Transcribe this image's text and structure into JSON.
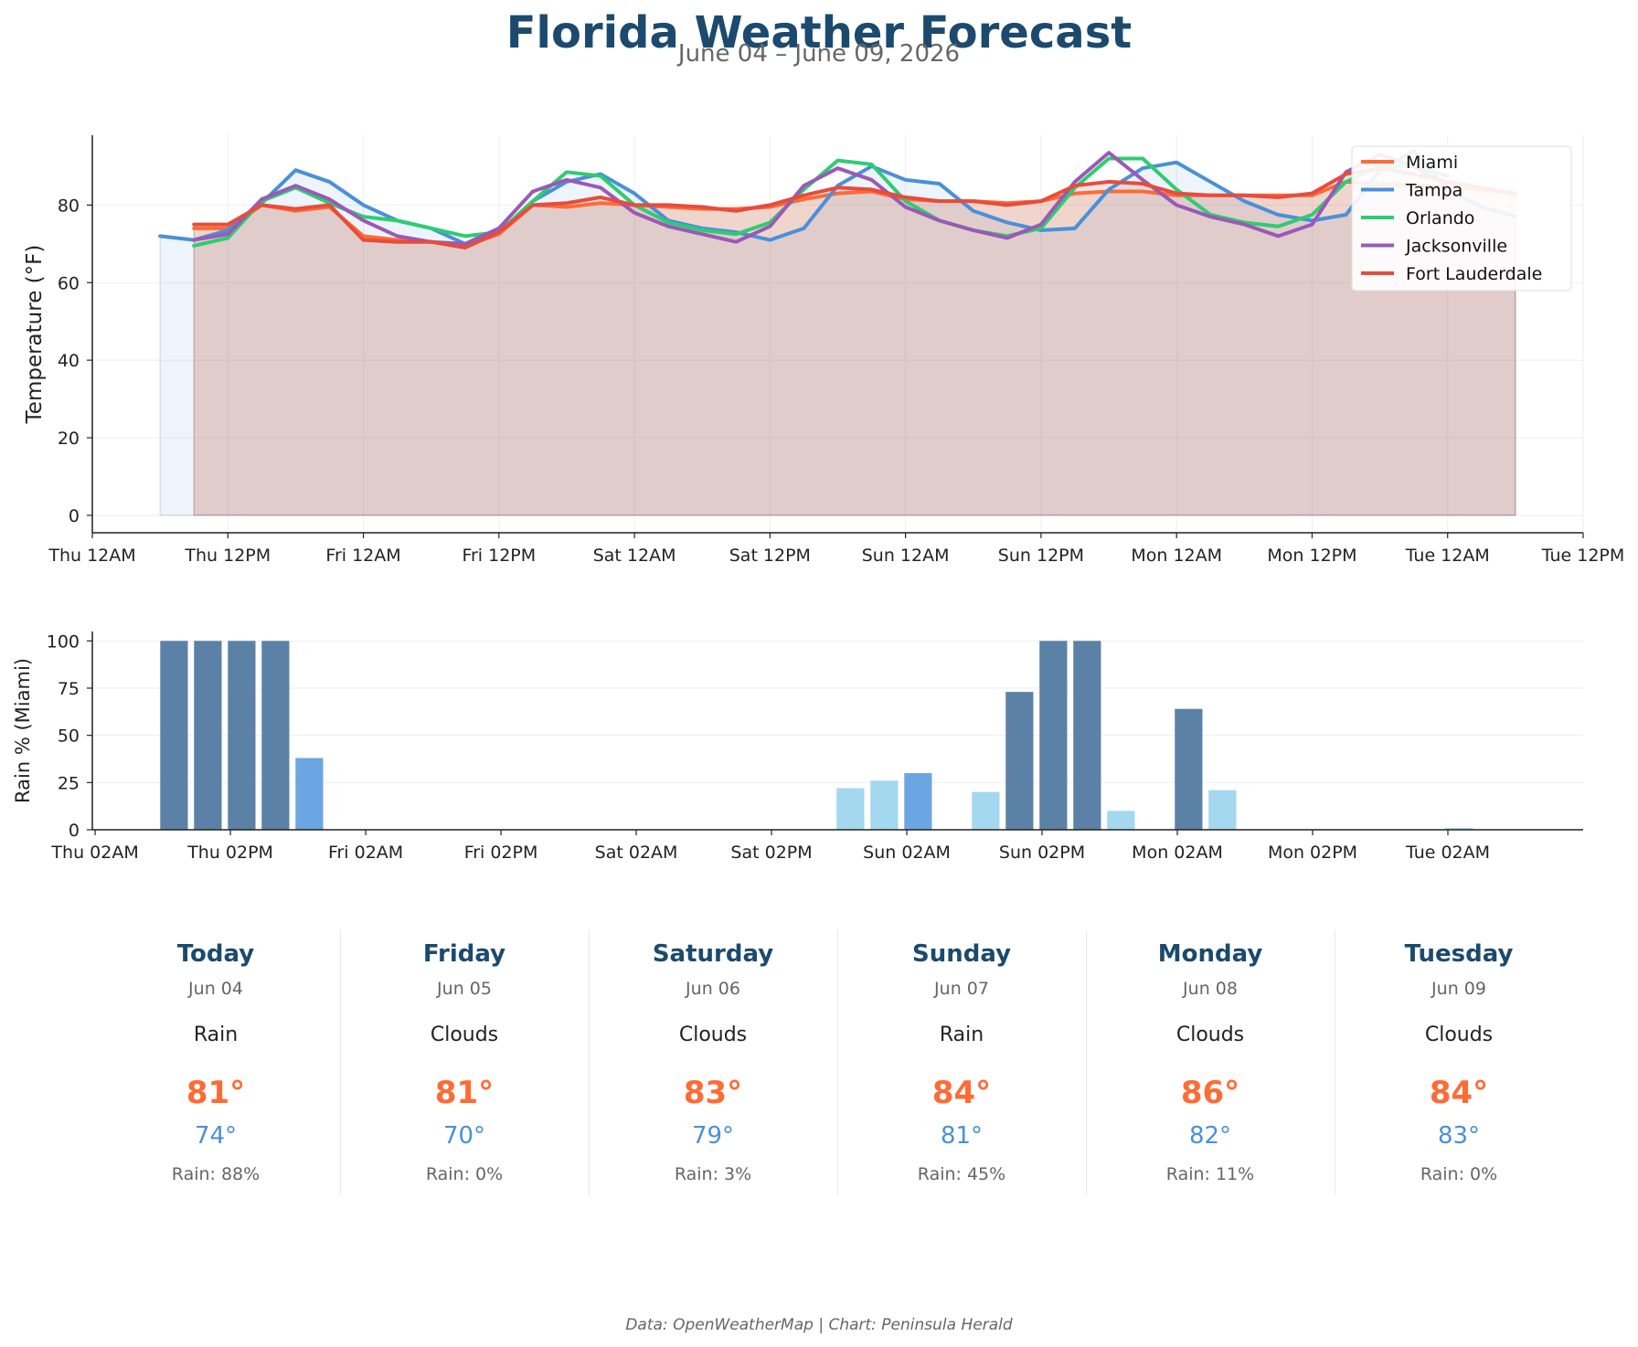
{
  "title": "Florida Weather Forecast",
  "subtitle": "June 04 – June 09, 2026",
  "footer": "Data: OpenWeatherMap | Chart: Peninsula Herald",
  "chart_data": [
    {
      "type": "line",
      "ylabel": "Temperature (°F)",
      "xlabel": "",
      "ylim": [
        -4.5,
        98
      ],
      "yticks": [
        0,
        20,
        40,
        60,
        80
      ],
      "xlim": [
        0,
        132
      ],
      "x_unit": "hours from Thu 12AM",
      "xticks": [
        {
          "x": 0,
          "label": "Thu 12AM"
        },
        {
          "x": 12,
          "label": "Thu 12PM"
        },
        {
          "x": 24,
          "label": "Fri 12AM"
        },
        {
          "x": 36,
          "label": "Fri 12PM"
        },
        {
          "x": 48,
          "label": "Sat 12AM"
        },
        {
          "x": 60,
          "label": "Sat 12PM"
        },
        {
          "x": 72,
          "label": "Sun 12AM"
        },
        {
          "x": 84,
          "label": "Sun 12PM"
        },
        {
          "x": 96,
          "label": "Mon 12AM"
        },
        {
          "x": 108,
          "label": "Mon 12PM"
        },
        {
          "x": 120,
          "label": "Tue 12AM"
        },
        {
          "x": 132,
          "label": "Tue 12PM"
        }
      ],
      "grid": true,
      "legend": "top-right",
      "series": [
        {
          "name": "Miami",
          "color": "#ff6b35",
          "fill": true,
          "x": [
            9,
            12,
            15,
            18,
            21,
            24,
            27,
            30,
            33,
            36,
            39,
            42,
            45,
            48,
            51,
            54,
            57,
            60,
            63,
            66,
            69,
            72,
            75,
            78,
            81,
            84,
            87,
            90,
            93,
            96,
            99,
            102,
            105,
            108,
            111,
            114,
            117,
            120,
            123,
            126
          ],
          "y": [
            74,
            74,
            80,
            78.5,
            79.5,
            72,
            71,
            70.5,
            69.5,
            72.5,
            80,
            79.5,
            80.5,
            80,
            79.5,
            79,
            79,
            79.5,
            81.5,
            83,
            83.5,
            81.5,
            81,
            81,
            80.5,
            81,
            83,
            83.5,
            83.5,
            82.5,
            82.5,
            82.5,
            82.5,
            82.5,
            86,
            85.5,
            85,
            84.5,
            84,
            83
          ]
        },
        {
          "name": "Tampa",
          "color": "#4a90d9",
          "fill": true,
          "x": [
            6,
            9,
            12,
            15,
            18,
            21,
            24,
            27,
            30,
            33,
            36,
            39,
            42,
            45,
            48,
            51,
            54,
            57,
            60,
            63,
            66,
            69,
            72,
            75,
            78,
            81,
            84,
            87,
            90,
            93,
            96,
            99,
            102,
            105,
            108,
            111,
            114,
            117,
            120,
            123,
            126
          ],
          "y": [
            72,
            71,
            73.5,
            80.5,
            89,
            86,
            80,
            76,
            74,
            70,
            73,
            81,
            86,
            88,
            83,
            76,
            74,
            73,
            71,
            74,
            85,
            90,
            86.5,
            85.5,
            78.5,
            75.5,
            73.5,
            74,
            84,
            89.5,
            91,
            86,
            81,
            77.5,
            76,
            77.5,
            89,
            94,
            84,
            79.5,
            77
          ]
        },
        {
          "name": "Orlando",
          "color": "#2ecc71",
          "fill": false,
          "x": [
            9,
            12,
            15,
            18,
            21,
            24,
            27,
            30,
            33,
            36,
            39,
            42,
            45,
            48,
            51,
            54,
            57,
            60,
            63,
            66,
            69,
            72,
            75,
            78,
            81,
            84,
            87,
            90,
            93,
            96,
            99,
            102,
            105,
            108,
            111,
            114,
            117,
            120
          ],
          "y": [
            69.5,
            71.5,
            81,
            84.5,
            80.5,
            77,
            76,
            74,
            72,
            73,
            81,
            88.5,
            87.5,
            80,
            75.5,
            73.5,
            72.5,
            75.5,
            84,
            91.5,
            90.5,
            81,
            76,
            73.5,
            72,
            74,
            84.5,
            92,
            92,
            84,
            77.5,
            75.5,
            74.5,
            77.5,
            86,
            90,
            90,
            87.5
          ]
        },
        {
          "name": "Jacksonville",
          "color": "#9b59b6",
          "fill": false,
          "x": [
            9,
            12,
            15,
            18,
            21,
            24,
            27,
            30,
            33,
            36,
            39,
            42,
            45,
            48,
            51,
            54,
            57,
            60,
            63,
            66,
            69,
            72,
            75,
            78,
            81,
            84,
            87,
            90,
            93,
            96,
            99,
            102,
            105,
            108,
            111,
            114,
            117,
            120
          ],
          "y": [
            71,
            72.5,
            81.5,
            85,
            81.5,
            76,
            72,
            70.5,
            70,
            74,
            83.5,
            86.5,
            84.5,
            78,
            74.5,
            72.5,
            70.5,
            74.5,
            85,
            89.5,
            86.5,
            79.5,
            76,
            73.5,
            71.5,
            75,
            86,
            93.5,
            86.5,
            80,
            77,
            75,
            72,
            75,
            88.5,
            93,
            90,
            85
          ]
        },
        {
          "name": "Fort Lauderdale",
          "color": "#e74c3c",
          "fill": true,
          "x": [
            9,
            12,
            15,
            18,
            21,
            24,
            27,
            30,
            33,
            36,
            39,
            42,
            45,
            48,
            51,
            54,
            57,
            60,
            63,
            66,
            69,
            72,
            75,
            78,
            81,
            84,
            87,
            90,
            93,
            96,
            99,
            102,
            105,
            108,
            111,
            114,
            117,
            120,
            123,
            126
          ],
          "y": [
            75,
            75,
            80,
            79,
            80,
            71,
            70.5,
            70.5,
            69,
            73,
            80,
            80.5,
            82,
            80,
            80,
            79.5,
            78.5,
            80,
            82.5,
            84.5,
            84,
            82,
            81,
            81,
            80,
            81,
            85,
            86,
            85.5,
            83,
            82.5,
            82.5,
            82,
            83,
            88,
            89.5,
            88,
            86,
            84.5,
            83
          ]
        }
      ]
    },
    {
      "type": "bar",
      "ylabel": "Rain % (Miami)",
      "xlabel": "",
      "ylim": [
        0,
        105
      ],
      "yticks": [
        0,
        25,
        50,
        75,
        100
      ],
      "xlim": [
        1.75,
        134
      ],
      "x_unit": "hours from Thu 12AM",
      "xticks": [
        {
          "x": 2,
          "label": "Thu 02AM"
        },
        {
          "x": 14,
          "label": "Thu 02PM"
        },
        {
          "x": 26,
          "label": "Fri 02AM"
        },
        {
          "x": 38,
          "label": "Fri 02PM"
        },
        {
          "x": 50,
          "label": "Sat 02AM"
        },
        {
          "x": 62,
          "label": "Sat 02PM"
        },
        {
          "x": 74,
          "label": "Sun 02AM"
        },
        {
          "x": 86,
          "label": "Sun 02PM"
        },
        {
          "x": 98,
          "label": "Mon 02AM"
        },
        {
          "x": 110,
          "label": "Mon 02PM"
        },
        {
          "x": 122,
          "label": "Tue 02AM"
        }
      ],
      "grid": true,
      "color_scale": {
        "high": "#5b82a6",
        "medium": "#6ca6e2",
        "low": "#a3d8ee"
      },
      "bars": [
        {
          "x": 9,
          "value": 100
        },
        {
          "x": 12,
          "value": 100
        },
        {
          "x": 15,
          "value": 100
        },
        {
          "x": 18,
          "value": 100
        },
        {
          "x": 21,
          "value": 38
        },
        {
          "x": 24,
          "value": 0
        },
        {
          "x": 27,
          "value": 0
        },
        {
          "x": 30,
          "value": 0
        },
        {
          "x": 33,
          "value": 0
        },
        {
          "x": 36,
          "value": 0
        },
        {
          "x": 39,
          "value": 0
        },
        {
          "x": 42,
          "value": 0
        },
        {
          "x": 45,
          "value": 0
        },
        {
          "x": 48,
          "value": 0
        },
        {
          "x": 51,
          "value": 0
        },
        {
          "x": 54,
          "value": 0
        },
        {
          "x": 57,
          "value": 0
        },
        {
          "x": 60,
          "value": 0
        },
        {
          "x": 63,
          "value": 0
        },
        {
          "x": 66,
          "value": 0
        },
        {
          "x": 69,
          "value": 22
        },
        {
          "x": 72,
          "value": 26
        },
        {
          "x": 75,
          "value": 30
        },
        {
          "x": 78,
          "value": 0
        },
        {
          "x": 81,
          "value": 20
        },
        {
          "x": 84,
          "value": 73
        },
        {
          "x": 87,
          "value": 100
        },
        {
          "x": 90,
          "value": 100
        },
        {
          "x": 93,
          "value": 10
        },
        {
          "x": 96,
          "value": 0
        },
        {
          "x": 99,
          "value": 64
        },
        {
          "x": 102,
          "value": 21
        },
        {
          "x": 105,
          "value": 0
        },
        {
          "x": 108,
          "value": 0
        },
        {
          "x": 111,
          "value": 0
        },
        {
          "x": 114,
          "value": 0
        },
        {
          "x": 117,
          "value": 0
        },
        {
          "x": 120,
          "value": 0
        },
        {
          "x": 123,
          "value": 1
        },
        {
          "x": 126,
          "value": 0
        }
      ]
    }
  ],
  "forecast": [
    {
      "day": "Today",
      "date": "Jun 04",
      "condition": "Rain",
      "high": "81°",
      "low": "74°",
      "rain": "Rain: 88%"
    },
    {
      "day": "Friday",
      "date": "Jun 05",
      "condition": "Clouds",
      "high": "81°",
      "low": "70°",
      "rain": "Rain: 0%"
    },
    {
      "day": "Saturday",
      "date": "Jun 06",
      "condition": "Clouds",
      "high": "83°",
      "low": "79°",
      "rain": "Rain: 3%"
    },
    {
      "day": "Sunday",
      "date": "Jun 07",
      "condition": "Rain",
      "high": "84°",
      "low": "81°",
      "rain": "Rain: 45%"
    },
    {
      "day": "Monday",
      "date": "Jun 08",
      "condition": "Clouds",
      "high": "86°",
      "low": "82°",
      "rain": "Rain: 11%"
    },
    {
      "day": "Tuesday",
      "date": "Jun 09",
      "condition": "Clouds",
      "high": "84°",
      "low": "83°",
      "rain": "Rain: 0%"
    }
  ]
}
